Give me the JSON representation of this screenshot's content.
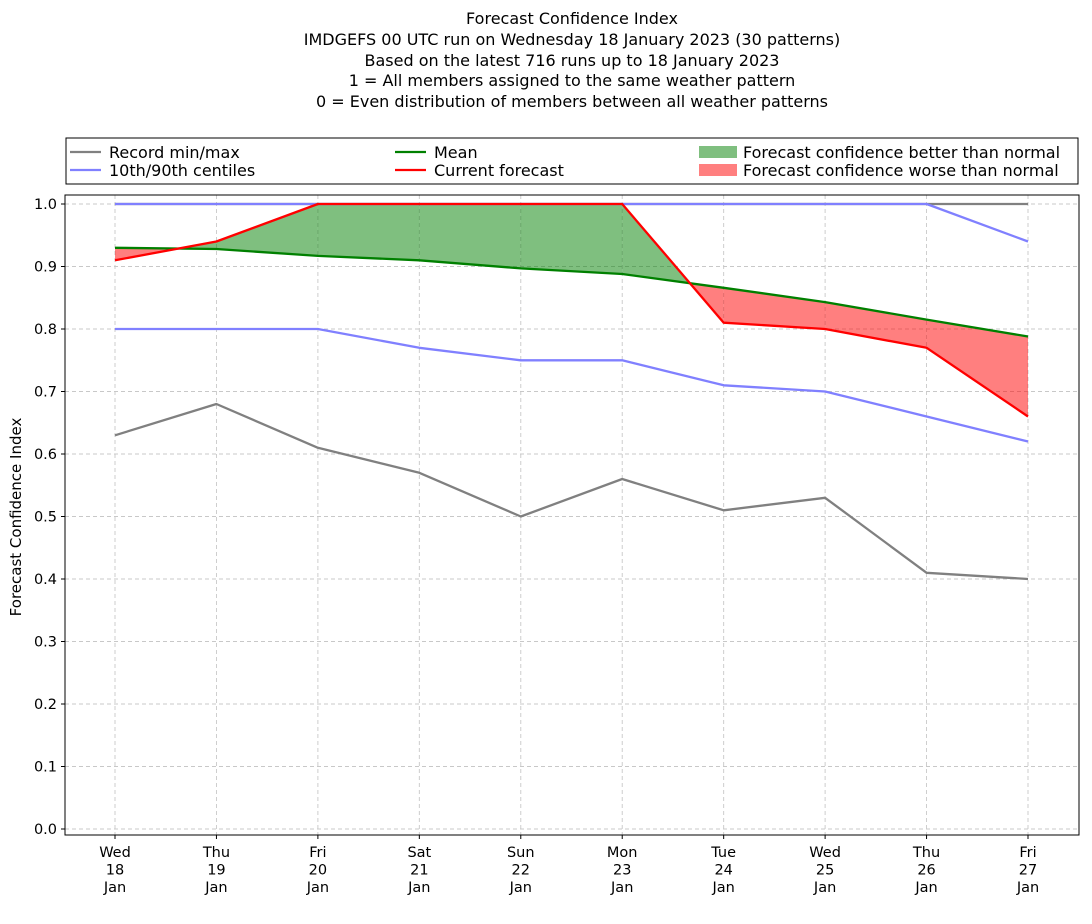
{
  "chart_data": {
    "type": "line",
    "title_lines": [
      "Forecast Confidence Index",
      "IMDGEFS 00 UTC run on Wednesday 18 January 2023 (30 patterns)",
      "Based on the latest 716 runs up to 18 January 2023",
      "1 = All members assigned to the same weather pattern",
      "0 = Even distribution of members between all weather patterns"
    ],
    "ylabel": "Forecast Confidence Index",
    "ylim": [
      0,
      1.0
    ],
    "yticks": [
      "0.0",
      "0.1",
      "0.2",
      "0.3",
      "0.4",
      "0.5",
      "0.6",
      "0.7",
      "0.8",
      "0.9",
      "1.0"
    ],
    "grid": true,
    "categories": [
      [
        "Wed",
        "18",
        "Jan"
      ],
      [
        "Thu",
        "19",
        "Jan"
      ],
      [
        "Fri",
        "20",
        "Jan"
      ],
      [
        "Sat",
        "21",
        "Jan"
      ],
      [
        "Sun",
        "22",
        "Jan"
      ],
      [
        "Mon",
        "23",
        "Jan"
      ],
      [
        "Tue",
        "24",
        "Jan"
      ],
      [
        "Wed",
        "25",
        "Jan"
      ],
      [
        "Thu",
        "26",
        "Jan"
      ],
      [
        "Fri",
        "27",
        "Jan"
      ]
    ],
    "series": [
      {
        "name": "Record min",
        "legend": "Record min/max",
        "color": "#808080",
        "values": [
          0.63,
          0.68,
          0.61,
          0.57,
          0.5,
          0.56,
          0.51,
          0.53,
          0.41,
          0.4
        ]
      },
      {
        "name": "Record max",
        "color": "#808080",
        "values": [
          1.0,
          1.0,
          1.0,
          1.0,
          1.0,
          1.0,
          1.0,
          1.0,
          1.0,
          1.0
        ]
      },
      {
        "name": "10th centile",
        "legend": "10th/90th centiles",
        "color": "#8080ff",
        "values": [
          0.8,
          0.8,
          0.8,
          0.77,
          0.75,
          0.75,
          0.71,
          0.7,
          0.66,
          0.62
        ]
      },
      {
        "name": "90th centile",
        "color": "#8080ff",
        "values": [
          1.0,
          1.0,
          1.0,
          1.0,
          1.0,
          1.0,
          1.0,
          1.0,
          1.0,
          0.94
        ]
      },
      {
        "name": "Mean",
        "legend": "Mean",
        "color": "#008000",
        "values": [
          0.93,
          0.928,
          0.917,
          0.91,
          0.897,
          0.888,
          0.866,
          0.843,
          0.815,
          0.788
        ]
      },
      {
        "name": "Current forecast",
        "legend": "Current forecast",
        "color": "#ff0000",
        "values": [
          0.91,
          0.94,
          1.0,
          1.0,
          1.0,
          1.0,
          0.81,
          0.8,
          0.77,
          0.66
        ]
      }
    ],
    "fills": [
      {
        "legend": "Forecast confidence better than normal",
        "color": "#008000"
      },
      {
        "legend": "Forecast confidence worse than normal",
        "color": "#ff0000"
      }
    ],
    "legend": {
      "location": "top",
      "columns": 3
    }
  }
}
